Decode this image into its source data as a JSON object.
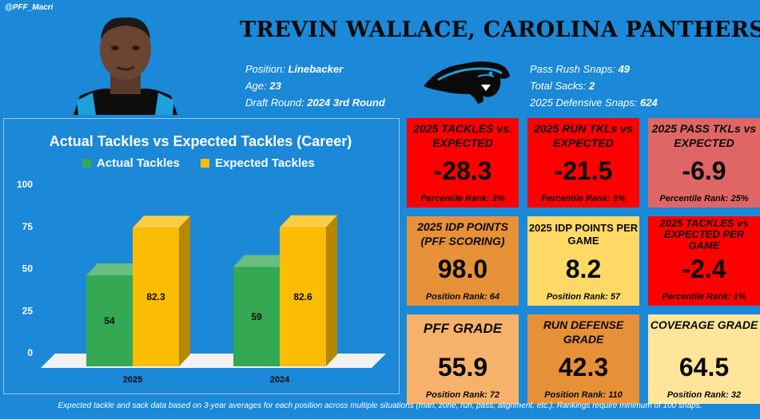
{
  "handle": "@PFF_Macri",
  "title": "TREVIN WALLACE, CAROLINA PANTHERS",
  "info_left": [
    {
      "label": "Position: ",
      "value": "Linebacker"
    },
    {
      "label": "Age: ",
      "value": "23"
    },
    {
      "label": "Draft Round: ",
      "value": "2024 3rd Round"
    }
  ],
  "info_right": [
    {
      "label": "Pass Rush Snaps: ",
      "value": "49"
    },
    {
      "label": "Total Sacks: ",
      "value": "2"
    },
    {
      "label": "2025 Defensive Snaps: ",
      "value": "624"
    }
  ],
  "chart_data": {
    "type": "bar",
    "title": "Actual Tackles vs Expected Tackles (Career)",
    "categories": [
      "2025",
      "2024"
    ],
    "series": [
      {
        "name": "Actual Tackles",
        "values": [
          54,
          59
        ],
        "color": "#34a853"
      },
      {
        "name": "Expected Tackles",
        "values": [
          82.3,
          82.6
        ],
        "color": "#fbbc04"
      }
    ],
    "ylim": [
      0,
      100
    ],
    "yticks": [
      "0",
      "25",
      "50",
      "75",
      "100"
    ],
    "grid": false,
    "legend": "top"
  },
  "cards": [
    {
      "title": "2025 TACKLES vs. EXPECTED",
      "value": "-28.3",
      "foot": "Percentile Rank: 3%",
      "color": "#ff0000"
    },
    {
      "title": "2025 RUN TKLs vs EXPECTED",
      "value": "-21.5",
      "foot": "Percentile Rank: 3%",
      "color": "#ff0000"
    },
    {
      "title": "2025 PASS TKLs vs EXPECTED",
      "value": "-6.9",
      "foot": "Percentile Rank: 25%",
      "color": "#e06666"
    },
    {
      "title": "2025 IDP POINTS (PFF SCORING)",
      "value": "98.0",
      "foot": "Position Rank: 64",
      "color": "#e69138"
    },
    {
      "title": "2025 IDP POINTS PER GAME",
      "value": "8.2",
      "foot": "Position Rank: 57",
      "color": "#ffd966"
    },
    {
      "title": "2025 TACKLES vs EXPECTED PER GAME",
      "value": "-2.4",
      "foot": "Percentile Rank: 1%",
      "color": "#ff0000"
    },
    {
      "title": "PFF GRADE",
      "value": "55.9",
      "foot": "Position Rank: 72",
      "color": "#f6b26b"
    },
    {
      "title": "RUN DEFENSE GRADE",
      "value": "42.3",
      "foot": "Position Rank: 110",
      "color": "#e69138"
    },
    {
      "title": "COVERAGE GRADE",
      "value": "64.5",
      "foot": "Position Rank: 32",
      "color": "#ffe599"
    }
  ],
  "footer": "Expected tackle and sack data based on 3-year averages for each position across multiple situations (man, zone, run, pass, alignment, etc.). Rankings require minimum of 100 snaps."
}
